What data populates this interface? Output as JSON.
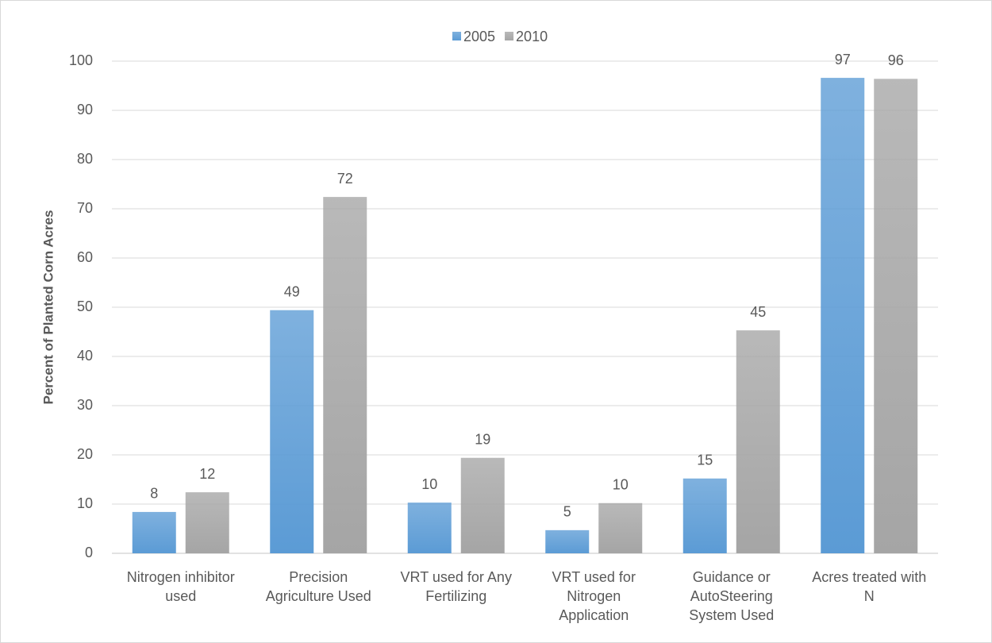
{
  "chart_data": {
    "type": "bar",
    "y_label": "Percent of Planted Corn Acres",
    "categories": [
      "Nitrogen inhibitor used",
      "Precision Agriculture Used",
      "VRT used for Any Fertilizing",
      "VRT used for Nitrogen Application",
      "Guidance or AutoSteering System Used",
      "Acres treated with N"
    ],
    "series": [
      {
        "name": "2005",
        "color": "#5b9bd5",
        "values": [
          8.4,
          49.4,
          10.3,
          4.7,
          15.2,
          96.6
        ],
        "value_labels": [
          "8",
          "49",
          "10",
          "5",
          "15",
          "97"
        ]
      },
      {
        "name": "2010",
        "color": "#a5a5a5",
        "values": [
          12.4,
          72.4,
          19.4,
          10.2,
          45.3,
          96.4
        ],
        "value_labels": [
          "12",
          "72",
          "19",
          "10",
          "45",
          "96"
        ]
      }
    ],
    "ylim": [
      0,
      100
    ],
    "yticks": [
      0,
      10,
      20,
      30,
      40,
      50,
      60,
      70,
      80,
      90,
      100
    ],
    "grid": true,
    "legend": "top"
  }
}
